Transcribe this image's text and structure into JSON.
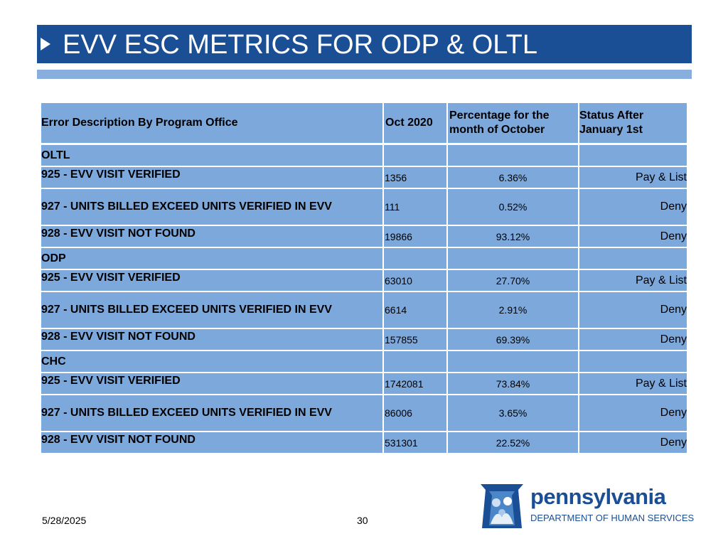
{
  "slide": {
    "title": "EVV ESC METRICS FOR ODP & OLTL",
    "date": "5/28/2025",
    "page_number": "30"
  },
  "table": {
    "headers": {
      "description": "Error Description By Program Office",
      "oct": "Oct 2020",
      "percentage": "Percentage for the month of October",
      "status": "Status After January 1st"
    },
    "sections": [
      {
        "name": "OLTL",
        "rows": [
          {
            "description": "925 - EVV VISIT VERIFIED",
            "oct": "1356",
            "percentage": "6.36%",
            "status": "Pay & List"
          },
          {
            "description": "927 - UNITS BILLED EXCEED UNITS VERIFIED IN EVV",
            "oct": "111",
            "percentage": "0.52%",
            "status": "Deny"
          },
          {
            "description": "928 - EVV VISIT NOT FOUND",
            "oct": "19866",
            "percentage": "93.12%",
            "status": "Deny"
          }
        ]
      },
      {
        "name": "ODP",
        "rows": [
          {
            "description": "925 - EVV VISIT VERIFIED",
            "oct": "63010",
            "percentage": "27.70%",
            "status": "Pay & List"
          },
          {
            "description": "927 - UNITS BILLED EXCEED UNITS VERIFIED IN EVV",
            "oct": "6614",
            "percentage": "2.91%",
            "status": "Deny"
          },
          {
            "description": "928 - EVV VISIT NOT FOUND",
            "oct": "157855",
            "percentage": "69.39%",
            "status": "Deny"
          }
        ]
      },
      {
        "name": "CHC",
        "rows": [
          {
            "description": "925 - EVV VISIT VERIFIED",
            "oct": "1742081",
            "percentage": "73.84%",
            "status": "Pay & List"
          },
          {
            "description": "927 - UNITS BILLED EXCEED UNITS VERIFIED IN EVV",
            "oct": "86006",
            "percentage": "3.65%",
            "status": "Deny"
          },
          {
            "description": "928 - EVV VISIT NOT FOUND",
            "oct": "531301",
            "percentage": "22.52%",
            "status": "Deny"
          }
        ]
      }
    ]
  },
  "logo": {
    "name": "pennsylvania",
    "department": "DEPARTMENT OF HUMAN SERVICES",
    "icon": "keystone-family-icon"
  },
  "colors": {
    "title_bar": "#1a4f95",
    "accent_bar": "#87aedd",
    "table_cell": "#7ca8dc"
  }
}
